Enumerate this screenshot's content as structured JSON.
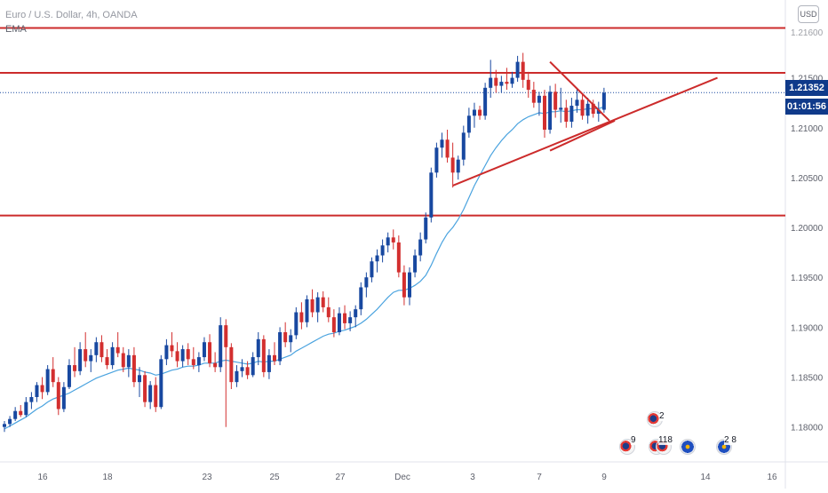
{
  "legend": {
    "title": "Euro / U.S. Dollar, 4h, OANDA",
    "indicator": "EMA"
  },
  "currency_button": "USD",
  "current_price_tag": "1.21352",
  "countdown_tag": "01:01:56",
  "events": {
    "top_count": "2",
    "counts": [
      "9",
      "118",
      "2 8"
    ]
  },
  "colors": {
    "up_candle": "#1848a0",
    "down_candle": "#d32f2f",
    "ema": "#4aa3df",
    "level_lines": "#cc2b2b",
    "price_line": "#1848a0",
    "tag_bg": "#0f3a8a"
  },
  "chart_data": {
    "type": "candlestick",
    "symbol": "EUR/USD",
    "timeframe": "4h",
    "y_ticks": [
      "1.21500",
      "1.21000",
      "1.20500",
      "1.20000",
      "1.19500",
      "1.19000",
      "1.18500",
      "1.18000"
    ],
    "y_top_partial_tick": "1.21600",
    "x_ticks": [
      "16",
      "18",
      "23",
      "25",
      "27",
      "Dec",
      "3",
      "7",
      "9",
      "14",
      "16"
    ],
    "ylim": [
      1.1765,
      1.2228
    ],
    "candles": [
      [
        1.18,
        1.1806,
        1.1795,
        1.1803
      ],
      [
        1.1803,
        1.1811,
        1.18,
        1.1808
      ],
      [
        1.1808,
        1.182,
        1.1806,
        1.1816
      ],
      [
        1.1816,
        1.1822,
        1.181,
        1.1812
      ],
      [
        1.1812,
        1.183,
        1.181,
        1.1825
      ],
      [
        1.1825,
        1.1835,
        1.1818,
        1.183
      ],
      [
        1.183,
        1.1845,
        1.1825,
        1.1842
      ],
      [
        1.1842,
        1.185,
        1.1828,
        1.1835
      ],
      [
        1.1835,
        1.1862,
        1.1832,
        1.1858
      ],
      [
        1.1858,
        1.187,
        1.184,
        1.1845
      ],
      [
        1.1845,
        1.185,
        1.1812,
        1.1818
      ],
      [
        1.1818,
        1.1845,
        1.1815,
        1.184
      ],
      [
        1.184,
        1.1868,
        1.1838,
        1.1862
      ],
      [
        1.1862,
        1.188,
        1.185,
        1.1856
      ],
      [
        1.1856,
        1.1885,
        1.1852,
        1.1878
      ],
      [
        1.1878,
        1.1895,
        1.186,
        1.1866
      ],
      [
        1.1866,
        1.1878,
        1.1855,
        1.1872
      ],
      [
        1.1872,
        1.189,
        1.1865,
        1.1885
      ],
      [
        1.1885,
        1.1892,
        1.1865,
        1.187
      ],
      [
        1.187,
        1.1878,
        1.1858,
        1.1862
      ],
      [
        1.1862,
        1.1885,
        1.1858,
        1.188
      ],
      [
        1.188,
        1.1895,
        1.187,
        1.1874
      ],
      [
        1.1874,
        1.188,
        1.1855,
        1.186
      ],
      [
        1.186,
        1.1878,
        1.185,
        1.1872
      ],
      [
        1.1872,
        1.188,
        1.184,
        1.1845
      ],
      [
        1.1845,
        1.186,
        1.183,
        1.1852
      ],
      [
        1.1852,
        1.1856,
        1.182,
        1.1825
      ],
      [
        1.1825,
        1.1846,
        1.1818,
        1.1842
      ],
      [
        1.1842,
        1.185,
        1.1815,
        1.182
      ],
      [
        1.182,
        1.1872,
        1.1818,
        1.1868
      ],
      [
        1.1868,
        1.1888,
        1.1862,
        1.1882
      ],
      [
        1.1882,
        1.1895,
        1.187,
        1.1876
      ],
      [
        1.1876,
        1.1885,
        1.186,
        1.1866
      ],
      [
        1.1866,
        1.1882,
        1.186,
        1.1878
      ],
      [
        1.1878,
        1.1884,
        1.1862,
        1.1868
      ],
      [
        1.1868,
        1.188,
        1.1858,
        1.1862
      ],
      [
        1.1862,
        1.1875,
        1.1855,
        1.187
      ],
      [
        1.187,
        1.189,
        1.1866,
        1.1885
      ],
      [
        1.1885,
        1.1893,
        1.186,
        1.1864
      ],
      [
        1.1864,
        1.1875,
        1.1855,
        1.186
      ],
      [
        1.186,
        1.191,
        1.1855,
        1.1902
      ],
      [
        1.1902,
        1.1908,
        1.18,
        1.188
      ],
      [
        1.188,
        1.1884,
        1.1838,
        1.1845
      ],
      [
        1.1845,
        1.1862,
        1.184,
        1.1856
      ],
      [
        1.1856,
        1.1868,
        1.185,
        1.186
      ],
      [
        1.186,
        1.1866,
        1.1848,
        1.1852
      ],
      [
        1.1852,
        1.1875,
        1.185,
        1.187
      ],
      [
        1.187,
        1.1895,
        1.1862,
        1.1888
      ],
      [
        1.1888,
        1.1892,
        1.185,
        1.1855
      ],
      [
        1.1855,
        1.1878,
        1.1848,
        1.1872
      ],
      [
        1.1872,
        1.1885,
        1.1862,
        1.1866
      ],
      [
        1.1866,
        1.19,
        1.1862,
        1.1895
      ],
      [
        1.1895,
        1.1905,
        1.188,
        1.1885
      ],
      [
        1.1885,
        1.1898,
        1.1875,
        1.1892
      ],
      [
        1.1892,
        1.192,
        1.1888,
        1.1915
      ],
      [
        1.1915,
        1.1925,
        1.1898,
        1.1905
      ],
      [
        1.1905,
        1.1932,
        1.19,
        1.1928
      ],
      [
        1.1928,
        1.1938,
        1.191,
        1.1915
      ],
      [
        1.1915,
        1.1935,
        1.1905,
        1.193
      ],
      [
        1.193,
        1.1936,
        1.1915,
        1.192
      ],
      [
        1.192,
        1.193,
        1.1905,
        1.191
      ],
      [
        1.191,
        1.1918,
        1.189,
        1.1895
      ],
      [
        1.1895,
        1.192,
        1.1892,
        1.1914
      ],
      [
        1.1914,
        1.1922,
        1.1898,
        1.1904
      ],
      [
        1.1904,
        1.1916,
        1.1896,
        1.191
      ],
      [
        1.191,
        1.1922,
        1.19,
        1.1918
      ],
      [
        1.1918,
        1.1945,
        1.1912,
        1.194
      ],
      [
        1.194,
        1.1955,
        1.193,
        1.195
      ],
      [
        1.195,
        1.197,
        1.1945,
        1.1966
      ],
      [
        1.1966,
        1.1978,
        1.1955,
        1.1972
      ],
      [
        1.1972,
        1.1988,
        1.1965,
        1.1982
      ],
      [
        1.1982,
        1.1995,
        1.1975,
        1.199
      ],
      [
        1.199,
        1.1998,
        1.1978,
        1.1985
      ],
      [
        1.1985,
        1.1992,
        1.195,
        1.1955
      ],
      [
        1.1955,
        1.1962,
        1.1922,
        1.193
      ],
      [
        1.193,
        1.196,
        1.1922,
        1.1955
      ],
      [
        1.1955,
        1.1978,
        1.195,
        1.1972
      ],
      [
        1.1972,
        1.1995,
        1.1966,
        1.1988
      ],
      [
        1.1988,
        1.2015,
        1.1984,
        1.201
      ],
      [
        1.201,
        1.206,
        1.2005,
        1.2055
      ],
      [
        1.2055,
        1.2085,
        1.205,
        1.208
      ],
      [
        1.208,
        1.2095,
        1.207,
        1.2088
      ],
      [
        1.2088,
        1.2098,
        1.2065,
        1.207
      ],
      [
        1.207,
        1.2085,
        1.204,
        1.2055
      ],
      [
        1.2055,
        1.2072,
        1.2048,
        1.2068
      ],
      [
        1.2068,
        1.2102,
        1.2062,
        1.2095
      ],
      [
        1.2095,
        1.212,
        1.209,
        1.2112
      ],
      [
        1.2112,
        1.2125,
        1.21,
        1.2118
      ],
      [
        1.2118,
        1.2122,
        1.2108,
        1.2112
      ],
      [
        1.2112,
        1.2145,
        1.2108,
        1.214
      ],
      [
        1.214,
        1.2168,
        1.213,
        1.215
      ],
      [
        1.215,
        1.2158,
        1.2135,
        1.2142
      ],
      [
        1.2142,
        1.2152,
        1.2135,
        1.2146
      ],
      [
        1.2146,
        1.216,
        1.2138,
        1.2144
      ],
      [
        1.2144,
        1.2156,
        1.214,
        1.215
      ],
      [
        1.215,
        1.2172,
        1.2146,
        1.2166
      ],
      [
        1.2166,
        1.2175,
        1.214,
        1.2148
      ],
      [
        1.2148,
        1.2156,
        1.213,
        1.2138
      ],
      [
        1.2138,
        1.2146,
        1.212,
        1.2125
      ],
      [
        1.2125,
        1.2136,
        1.2112,
        1.2132
      ],
      [
        1.2132,
        1.2138,
        1.209,
        1.2098
      ],
      [
        1.2098,
        1.2142,
        1.2094,
        1.2136
      ],
      [
        1.2136,
        1.2144,
        1.211,
        1.2118
      ],
      [
        1.2118,
        1.214,
        1.2105,
        1.212
      ],
      [
        1.212,
        1.2128,
        1.21,
        1.2106
      ],
      [
        1.2106,
        1.213,
        1.21,
        1.2122
      ],
      [
        1.2122,
        1.214,
        1.2115,
        1.2128
      ],
      [
        1.2128,
        1.2134,
        1.2108,
        1.2112
      ],
      [
        1.2112,
        1.213,
        1.2104,
        1.2124
      ],
      [
        1.2124,
        1.2128,
        1.211,
        1.2114
      ],
      [
        1.2114,
        1.2126,
        1.2106,
        1.2118
      ],
      [
        1.2118,
        1.214,
        1.2115,
        1.2135
      ]
    ],
    "ema": [
      1.1798,
      1.1801,
      1.1804,
      1.1807,
      1.181,
      1.1814,
      1.1818,
      1.1821,
      1.1825,
      1.1828,
      1.183,
      1.1832,
      1.1834,
      1.1837,
      1.184,
      1.1843,
      1.1846,
      1.1849,
      1.1851,
      1.1853,
      1.1855,
      1.1857,
      1.1858,
      1.1859,
      1.1858,
      1.1857,
      1.1855,
      1.1854,
      1.1852,
      1.1853,
      1.1855,
      1.1857,
      1.1858,
      1.186,
      1.1861,
      1.1861,
      1.1862,
      1.1864,
      1.1864,
      1.1864,
      1.1866,
      1.1867,
      1.1866,
      1.1865,
      1.1864,
      1.1863,
      1.1864,
      1.1866,
      1.1865,
      1.1866,
      1.1866,
      1.1868,
      1.187,
      1.1872,
      1.1876,
      1.1879,
      1.1882,
      1.1885,
      1.1888,
      1.1891,
      1.1893,
      1.1894,
      1.1896,
      1.1897,
      1.1899,
      1.1901,
      1.1904,
      1.1908,
      1.1913,
      1.1918,
      1.1924,
      1.193,
      1.1935,
      1.1937,
      1.1937,
      1.1939,
      1.1942,
      1.1946,
      1.1952,
      1.1962,
      1.1974,
      1.1985,
      1.1994,
      1.2,
      1.2008,
      1.2018,
      1.203,
      1.2042,
      1.2052,
      1.2062,
      1.2072,
      1.208,
      1.2087,
      1.2093,
      1.2098,
      1.2104,
      1.2108,
      1.2111,
      1.2113,
      1.2115,
      1.2114,
      1.2116,
      1.2116,
      1.2117,
      1.2116,
      1.2117,
      1.2118,
      1.2118,
      1.2119,
      1.2119,
      1.2119,
      1.2121
    ],
    "horizontal_levels": [
      1.22,
      1.2155,
      1.2012
    ],
    "current_price": 1.21352,
    "trendlines": [
      {
        "from": [
          83,
          1.2042
        ],
        "to": [
          132,
          1.215
        ]
      },
      {
        "from": [
          101,
          1.2166
        ],
        "to": [
          112,
          1.2107
        ]
      },
      {
        "from": [
          101,
          1.2077
        ],
        "to": [
          113,
          1.2107
        ]
      }
    ]
  }
}
